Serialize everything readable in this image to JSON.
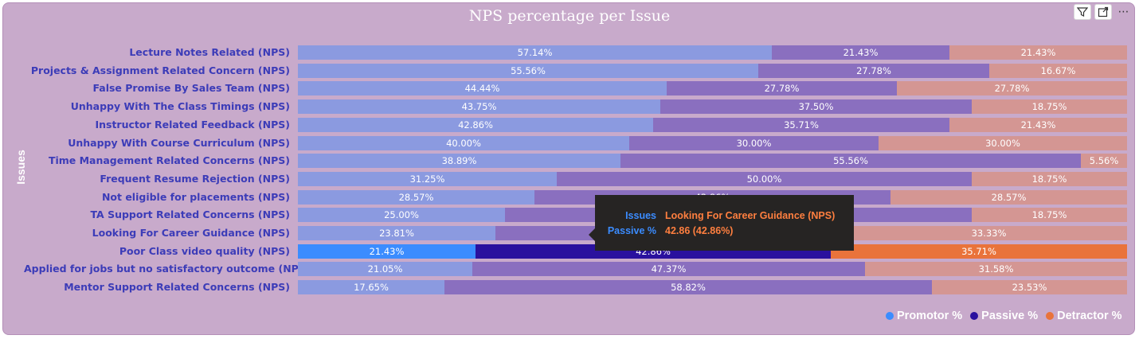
{
  "toolbar": {
    "filter_icon": "filter-icon",
    "focus_icon": "focus-mode-icon",
    "more_label": "⋯"
  },
  "chart_data": {
    "type": "bar",
    "orientation": "horizontal",
    "stacked": "100%",
    "title": "NPS percentage per Issue",
    "ylabel": "Issues",
    "xlabel": "",
    "xlim": [
      0,
      100
    ],
    "legend_position": "bottom-right",
    "grid": false,
    "categories": [
      "Lecture Notes Related (NPS)",
      "Projects & Assignment Related Concern (NPS)",
      "False Promise By Sales Team (NPS)",
      "Unhappy With The Class Timings (NPS)",
      "Instructor Related Feedback (NPS)",
      "Unhappy With Course Curriculum (NPS)",
      "Time Management Related Concerns (NPS)",
      "Frequent Resume Rejection (NPS)",
      "Not eligible for placements (NPS)",
      "TA Support Related Concerns (NPS)",
      "Looking For Career Guidance (NPS)",
      "Poor Class video quality (NPS)",
      "Applied for jobs but no satisfactory outcome (NPS)",
      "Mentor Support Related Concerns (NPS)"
    ],
    "series": [
      {
        "name": "Promotor %",
        "color": "#3b8cff",
        "dim_color": "#8b9ae0",
        "values": [
          57.14,
          55.56,
          44.44,
          43.75,
          42.86,
          40.0,
          38.89,
          31.25,
          28.57,
          25.0,
          23.81,
          21.43,
          21.05,
          17.65
        ],
        "labels": [
          "57.14%",
          "55.56%",
          "44.44%",
          "43.75%",
          "42.86%",
          "40.00%",
          "38.89%",
          "31.25%",
          "28.57%",
          "25.00%",
          "23.81%",
          "21.43%",
          "21.05%",
          "17.65%"
        ]
      },
      {
        "name": "Passive %",
        "color": "#2a119e",
        "dim_color": "#8a6fbf",
        "values": [
          21.43,
          27.78,
          27.78,
          37.5,
          35.71,
          30.0,
          55.56,
          50.0,
          42.86,
          56.25,
          42.86,
          42.86,
          47.37,
          58.82
        ],
        "labels": [
          "21.43%",
          "27.78%",
          "27.78%",
          "37.50%",
          "35.71%",
          "30.00%",
          "55.56%",
          "50.00%",
          "42.86%",
          "",
          "",
          "42.86%",
          "47.37%",
          "58.82%"
        ]
      },
      {
        "name": "Detractor %",
        "color": "#e9733b",
        "dim_color": "#d49693",
        "values": [
          21.43,
          16.67,
          27.78,
          18.75,
          21.43,
          30.0,
          5.56,
          18.75,
          28.57,
          18.75,
          33.33,
          35.71,
          31.58,
          23.53
        ],
        "labels": [
          "21.43%",
          "16.67%",
          "27.78%",
          "18.75%",
          "21.43%",
          "30.00%",
          "5.56%",
          "18.75%",
          "28.57%",
          "18.75%",
          "33.33%",
          "35.71%",
          "31.58%",
          "23.53%"
        ]
      }
    ],
    "highlighted_index": 11
  },
  "tooltip": {
    "rows": [
      {
        "key": "Issues",
        "value": "Looking For Career Guidance (NPS)"
      },
      {
        "key": "Passive %",
        "value": "42.86 (42.86%)"
      }
    ]
  }
}
